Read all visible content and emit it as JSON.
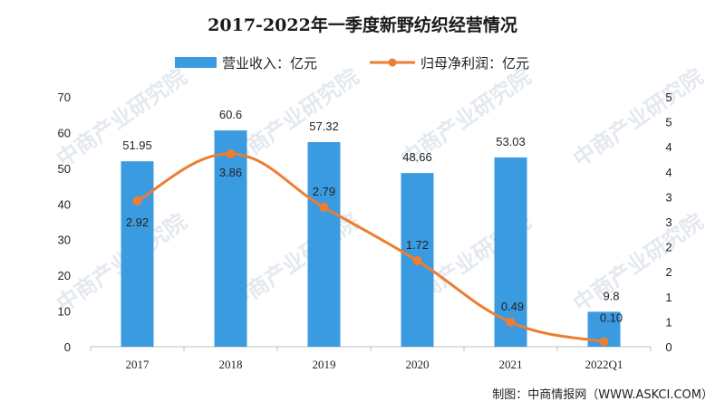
{
  "chart_data": {
    "type": "bar",
    "title": "2017-2022年一季度新野纺织经营情况",
    "categories": [
      "2017",
      "2018",
      "2019",
      "2020",
      "2021",
      "2022Q1"
    ],
    "series": [
      {
        "name": "营业收入：亿元",
        "type": "bar",
        "axis": "left",
        "color": "#3b9be0",
        "values": [
          51.95,
          60.6,
          57.32,
          48.66,
          53.03,
          9.8
        ],
        "labels": [
          "51.95",
          "60.6",
          "57.32",
          "48.66",
          "53.03",
          "9.8"
        ]
      },
      {
        "name": "归母净利润：亿元",
        "type": "line",
        "axis": "right",
        "color": "#ed7d31",
        "values": [
          2.92,
          3.86,
          2.79,
          1.72,
          0.49,
          0.1
        ],
        "labels": [
          "2.92",
          "3.86",
          "2.79",
          "1.72",
          "0.49",
          "0.10"
        ]
      }
    ],
    "y_left": {
      "ylim": [
        0,
        70
      ],
      "ticks": [
        "0",
        "10",
        "20",
        "30",
        "40",
        "50",
        "60",
        "70"
      ]
    },
    "y_right": {
      "ylim": [
        0,
        5
      ],
      "ticks": [
        "0",
        "1",
        "1",
        "2",
        "2",
        "3",
        "3",
        "4",
        "4",
        "5",
        "5"
      ]
    },
    "grid": false,
    "legend_position": "top-center"
  },
  "source": "制图：中商情报网（WWW.ASKCI.COM）",
  "watermark": "中商产业研究院"
}
